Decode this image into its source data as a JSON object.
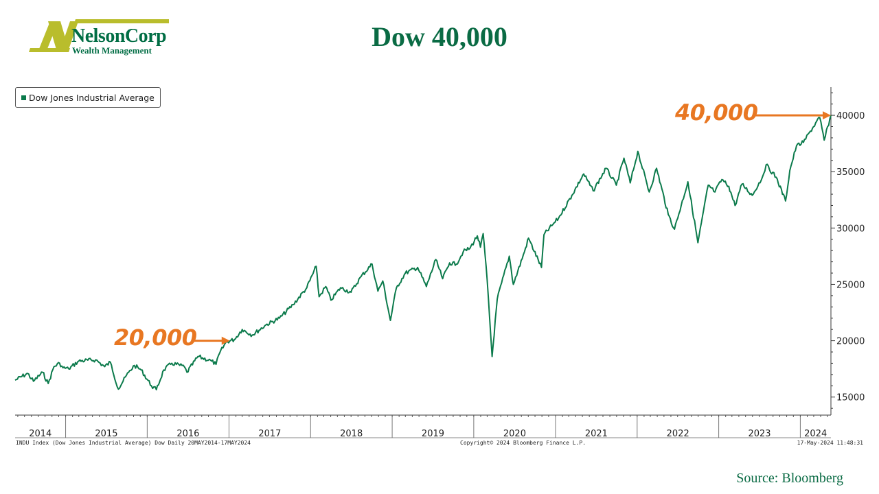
{
  "brand": {
    "name": "NelsonCorp",
    "tagline": "Wealth Management",
    "logo_mark": "N",
    "colors": {
      "green": "#006d44",
      "olive": "#b9bd2c"
    }
  },
  "title": "Dow 40,000",
  "annotations": [
    {
      "label": "20,000",
      "value": 20000,
      "date": "2017-01"
    },
    {
      "label": "40,000",
      "value": 40000,
      "date": "2024-05"
    }
  ],
  "footer": {
    "left": "INDU Index (Dow Jones Industrial Average) Dow  Daily 20MAY2014-17MAY2024",
    "mid": "Copyright© 2024 Bloomberg Finance L.P.",
    "right": "17-May-2024 11:48:31"
  },
  "source": "Source: Bloomberg",
  "colors": {
    "line": "#0b7a4b",
    "annotation": "#e87722",
    "title": "#0a6b44"
  },
  "chart_data": {
    "type": "line",
    "title": "Dow 40,000",
    "legend": "top-left",
    "grid": false,
    "x_range": [
      "2014-05-20",
      "2024-05-17"
    ],
    "ylim": [
      13400,
      42500
    ],
    "y_ticks": [
      15000,
      20000,
      25000,
      30000,
      35000,
      40000
    ],
    "x_tick_labels": [
      "2014",
      "2015",
      "2016",
      "2017",
      "2018",
      "2019",
      "2020",
      "2021",
      "2022",
      "2023",
      "2024"
    ],
    "series": [
      {
        "name": "Dow Jones Industrial Average",
        "x": [
          "2014-05-20",
          "2014-07-15",
          "2014-08-10",
          "2014-09-20",
          "2014-10-15",
          "2014-11-10",
          "2014-12-05",
          "2014-12-20",
          "2015-01-15",
          "2015-03-01",
          "2015-05-15",
          "2015-06-25",
          "2015-07-20",
          "2015-08-25",
          "2015-09-15",
          "2015-10-10",
          "2015-11-05",
          "2015-12-05",
          "2016-01-20",
          "2016-02-11",
          "2016-03-15",
          "2016-04-20",
          "2016-06-15",
          "2016-06-27",
          "2016-08-15",
          "2016-10-15",
          "2016-11-04",
          "2016-11-20",
          "2016-12-20",
          "2017-01-25",
          "2017-03-01",
          "2017-04-15",
          "2017-06-15",
          "2017-08-15",
          "2017-10-15",
          "2017-12-15",
          "2018-01-26",
          "2018-02-08",
          "2018-03-10",
          "2018-04-02",
          "2018-05-15",
          "2018-07-01",
          "2018-08-15",
          "2018-10-03",
          "2018-10-29",
          "2018-11-20",
          "2018-12-24",
          "2019-01-20",
          "2019-03-01",
          "2019-04-25",
          "2019-06-03",
          "2019-07-15",
          "2019-08-15",
          "2019-09-15",
          "2019-10-15",
          "2019-11-15",
          "2019-12-15",
          "2020-01-17",
          "2020-01-31",
          "2020-02-12",
          "2020-03-01",
          "2020-03-23",
          "2020-04-15",
          "2020-06-08",
          "2020-06-26",
          "2020-08-15",
          "2020-09-02",
          "2020-10-30",
          "2020-11-10",
          "2020-12-15",
          "2021-01-15",
          "2021-03-15",
          "2021-05-07",
          "2021-06-18",
          "2021-08-15",
          "2021-09-30",
          "2021-11-03",
          "2021-12-01",
          "2022-01-04",
          "2022-02-24",
          "2022-03-29",
          "2022-05-20",
          "2022-06-17",
          "2022-08-16",
          "2022-09-30",
          "2022-11-15",
          "2022-12-15",
          "2023-01-15",
          "2023-02-15",
          "2023-03-15",
          "2023-04-15",
          "2023-05-31",
          "2023-07-15",
          "2023-08-01",
          "2023-09-15",
          "2023-10-27",
          "2023-11-15",
          "2023-12-15",
          "2024-01-15",
          "2024-02-15",
          "2024-03-28",
          "2024-04-17",
          "2024-05-17"
        ],
        "values": [
          16500,
          17100,
          16400,
          17200,
          16200,
          17700,
          18000,
          17600,
          17500,
          18200,
          18300,
          17700,
          18100,
          15700,
          16400,
          17200,
          17800,
          17400,
          16000,
          15650,
          17400,
          18000,
          17700,
          17200,
          18600,
          18200,
          17900,
          18900,
          19900,
          20100,
          21000,
          20500,
          21400,
          22000,
          23200,
          24700,
          26600,
          23900,
          24800,
          23600,
          24700,
          24300,
          25700,
          26800,
          24400,
          25300,
          21800,
          24700,
          26000,
          26500,
          24800,
          27200,
          25500,
          26900,
          26800,
          27900,
          28200,
          29300,
          28300,
          29500,
          25400,
          18600,
          23700,
          27500,
          25000,
          27900,
          29100,
          26500,
          29400,
          30200,
          30900,
          32900,
          34800,
          33300,
          35300,
          33800,
          36200,
          34000,
          36800,
          33200,
          35300,
          31200,
          29900,
          34100,
          28700,
          33800,
          33200,
          34300,
          33700,
          32000,
          33900,
          32900,
          34500,
          35600,
          34500,
          32400,
          35100,
          37300,
          37600,
          38600,
          39800,
          37800,
          40000
        ]
      }
    ]
  }
}
